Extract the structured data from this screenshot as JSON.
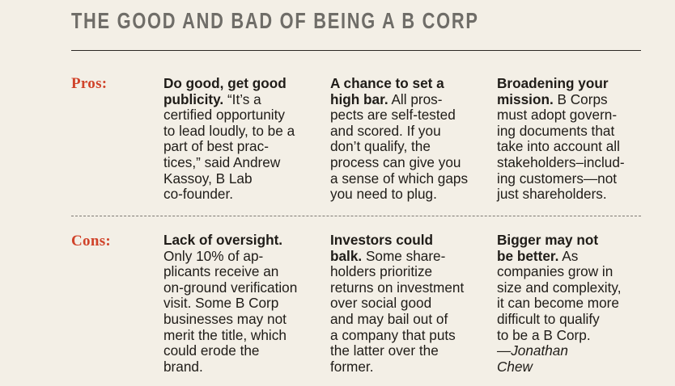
{
  "title": "THE GOOD AND BAD OF BEING A B CORP",
  "colors": {
    "background": "#f3efe6",
    "label_red": "#d0432a",
    "title_gray": "#6f6d68",
    "text": "#1f1c18"
  },
  "rows": [
    {
      "label": "Pros:",
      "cells": [
        {
          "lines": [
            {
              "head": "Do good, get good",
              "text": ""
            },
            {
              "head": "publicity.",
              "text": " “It’s a"
            },
            {
              "head": "",
              "text": "certified opportunity"
            },
            {
              "head": "",
              "text": "to lead loudly, to be a"
            },
            {
              "head": "",
              "text": "part of best prac-"
            },
            {
              "head": "",
              "text": "tices,” said Andrew"
            },
            {
              "head": "",
              "text": "Kassoy, B Lab"
            },
            {
              "head": "",
              "text": "co-founder."
            }
          ]
        },
        {
          "lines": [
            {
              "head": "A chance to set a",
              "text": ""
            },
            {
              "head": "high bar.",
              "text": " All pros-"
            },
            {
              "head": "",
              "text": "pects are self-tested"
            },
            {
              "head": "",
              "text": "and scored. If you"
            },
            {
              "head": "",
              "text": "don’t qualify, the"
            },
            {
              "head": "",
              "text": "process can give you"
            },
            {
              "head": "",
              "text": "a sense of which gaps"
            },
            {
              "head": "",
              "text": "you need to plug."
            }
          ]
        },
        {
          "lines": [
            {
              "head": "Broadening your",
              "text": ""
            },
            {
              "head": "mission.",
              "text": " B Corps"
            },
            {
              "head": "",
              "text": "must adopt govern-"
            },
            {
              "head": "",
              "text": "ing documents that"
            },
            {
              "head": "",
              "text": "take into account all"
            },
            {
              "head": "",
              "text": "stakeholders–includ-"
            },
            {
              "head": "",
              "text": "ing customers—not"
            },
            {
              "head": "",
              "text": "just shareholders."
            }
          ]
        }
      ]
    },
    {
      "label": "Cons:",
      "cells": [
        {
          "lines": [
            {
              "head": "Lack of oversight.",
              "text": ""
            },
            {
              "head": "",
              "text": "Only 10% of ap-"
            },
            {
              "head": "",
              "text": "plicants receive an"
            },
            {
              "head": "",
              "text": "on-ground verification"
            },
            {
              "head": "",
              "text": "visit. Some B Corp"
            },
            {
              "head": "",
              "text": "businesses may not"
            },
            {
              "head": "",
              "text": "merit the title, which"
            },
            {
              "head": "",
              "text": "could erode the"
            },
            {
              "head": "",
              "text": "brand."
            }
          ]
        },
        {
          "lines": [
            {
              "head": "Investors could",
              "text": ""
            },
            {
              "head": "balk.",
              "text": " Some share-"
            },
            {
              "head": "",
              "text": "holders prioritize"
            },
            {
              "head": "",
              "text": "returns on investment"
            },
            {
              "head": "",
              "text": "over social good"
            },
            {
              "head": "",
              "text": "and may bail out of"
            },
            {
              "head": "",
              "text": "a company that puts"
            },
            {
              "head": "",
              "text": "the latter over the"
            },
            {
              "head": "",
              "text": "former."
            }
          ]
        },
        {
          "lines": [
            {
              "head": "Bigger may not",
              "text": ""
            },
            {
              "head": "be better.",
              "text": " As"
            },
            {
              "head": "",
              "text": "companies grow in"
            },
            {
              "head": "",
              "text": "size and complexity,"
            },
            {
              "head": "",
              "text": "it can become more"
            },
            {
              "head": "",
              "text": "difficult to qualify"
            },
            {
              "head": "",
              "text": "to be a B Corp."
            },
            {
              "head": "",
              "text": "",
              "italic": "—Jonathan"
            },
            {
              "head": "",
              "text": "",
              "italic": "Chew"
            }
          ]
        }
      ]
    }
  ]
}
